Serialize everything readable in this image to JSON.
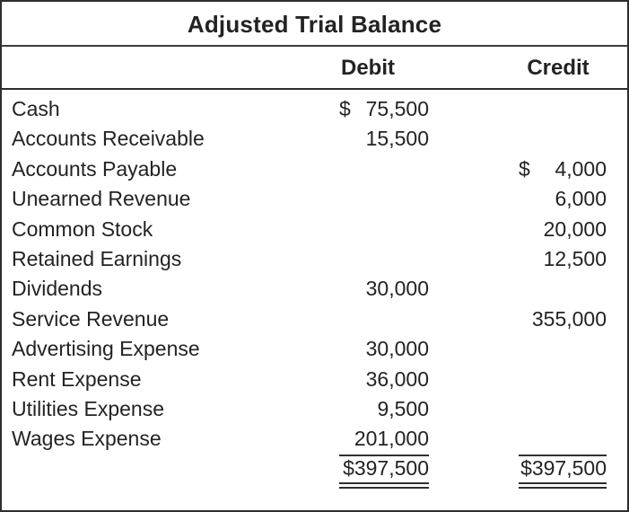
{
  "title": "Adjusted Trial Balance",
  "columns": {
    "debit": "Debit",
    "credit": "Credit"
  },
  "rows": [
    {
      "account": "Cash",
      "side": "debit",
      "dollar": "$",
      "amount": "75,500"
    },
    {
      "account": "Accounts Receivable",
      "side": "debit",
      "dollar": "",
      "amount": "15,500"
    },
    {
      "account": "Accounts Payable",
      "side": "credit",
      "dollar": "$",
      "amount": "4,000"
    },
    {
      "account": "Unearned Revenue",
      "side": "credit",
      "dollar": "",
      "amount": "6,000"
    },
    {
      "account": "Common Stock",
      "side": "credit",
      "dollar": "",
      "amount": "20,000"
    },
    {
      "account": "Retained Earnings",
      "side": "credit",
      "dollar": "",
      "amount": "12,500"
    },
    {
      "account": "Dividends",
      "side": "debit",
      "dollar": "",
      "amount": "30,000"
    },
    {
      "account": "Service Revenue",
      "side": "credit",
      "dollar": "",
      "amount": "355,000"
    },
    {
      "account": "Advertising Expense",
      "side": "debit",
      "dollar": "",
      "amount": "30,000"
    },
    {
      "account": "Rent Expense",
      "side": "debit",
      "dollar": "",
      "amount": "36,000"
    },
    {
      "account": "Utilities Expense",
      "side": "debit",
      "dollar": "",
      "amount": "9,500"
    },
    {
      "account": "Wages Expense",
      "side": "debit",
      "dollar": "",
      "amount": "201,000",
      "sum_rule": true
    }
  ],
  "totals": {
    "debit": "$397,500",
    "credit": "$397,500"
  },
  "colors": {
    "text": "#232323",
    "line": "#2e2e2e",
    "background": "#ffffff"
  }
}
